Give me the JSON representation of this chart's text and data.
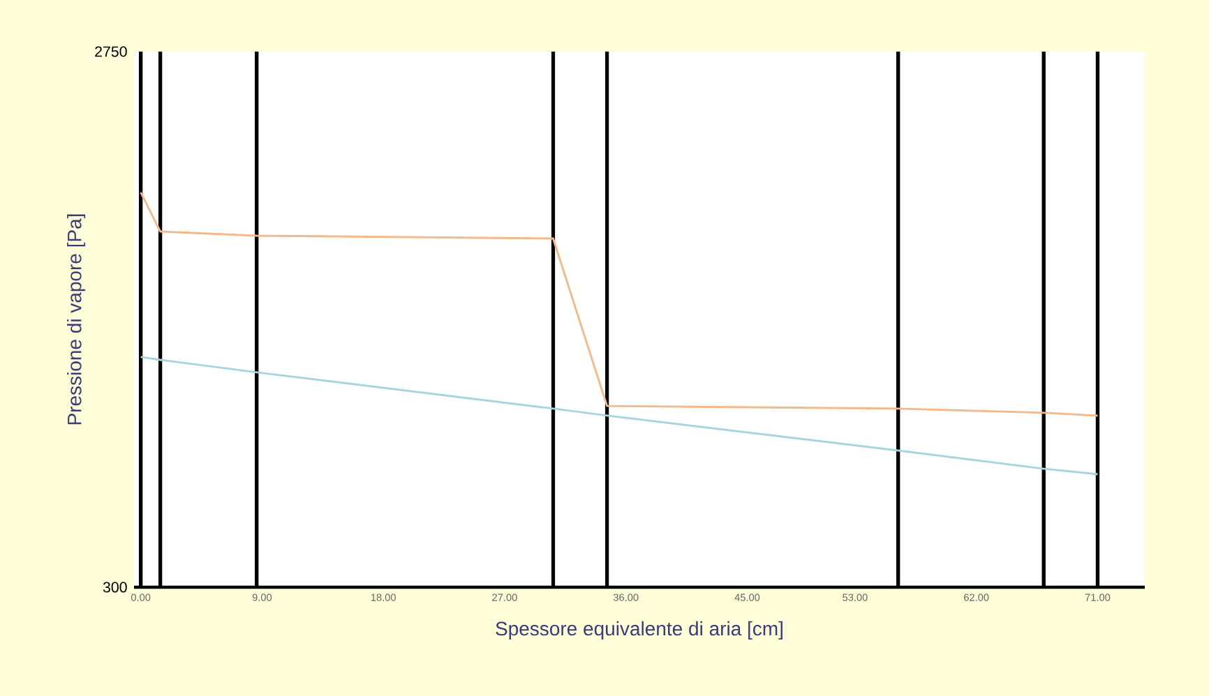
{
  "chart_data": {
    "type": "line",
    "xlabel": "Spessore equivalente di aria [cm]",
    "ylabel": "Pressione di vapore [Pa]",
    "x": [
      0,
      1.45,
      8.6,
      30.6,
      34.6,
      56.2,
      67.0,
      71
    ],
    "series": [
      {
        "color": "#f5b88a",
        "values": [
          2106,
          1927,
          1908,
          1895,
          1129,
          1117,
          1098,
          1085
        ]
      },
      {
        "color": "#a8d4e0",
        "values": [
          1353,
          1340,
          1283,
          1117,
          1085,
          925,
          842,
          817
        ]
      }
    ],
    "xlim": [
      -0.5,
      74.5
    ],
    "ylim": [
      300,
      2750
    ],
    "xticks": [
      {
        "value": 0,
        "label": "0.00"
      },
      {
        "value": 9,
        "label": "9.00"
      },
      {
        "value": 18,
        "label": "18.00"
      },
      {
        "value": 27,
        "label": "27.00"
      },
      {
        "value": 36,
        "label": "36.00"
      },
      {
        "value": 45,
        "label": "45.00"
      },
      {
        "value": 53,
        "label": "53.00"
      },
      {
        "value": 62,
        "label": "62.00"
      },
      {
        "value": 71,
        "label": "71.00"
      }
    ],
    "yticks": [
      300,
      2750
    ],
    "ref_lines": [
      {
        "axis": "x",
        "value": 0,
        "color": "#000000"
      },
      {
        "axis": "x",
        "value": 1.45,
        "color": "#000000"
      },
      {
        "axis": "x",
        "value": 8.6,
        "color": "#000000"
      },
      {
        "axis": "x",
        "value": 30.6,
        "color": "#000000"
      },
      {
        "axis": "x",
        "value": 34.6,
        "color": "#000000"
      },
      {
        "axis": "x",
        "value": 56.2,
        "color": "#000000"
      },
      {
        "axis": "x",
        "value": 67.0,
        "color": "#000000"
      },
      {
        "axis": "x",
        "value": 71,
        "color": "#000000"
      }
    ]
  }
}
